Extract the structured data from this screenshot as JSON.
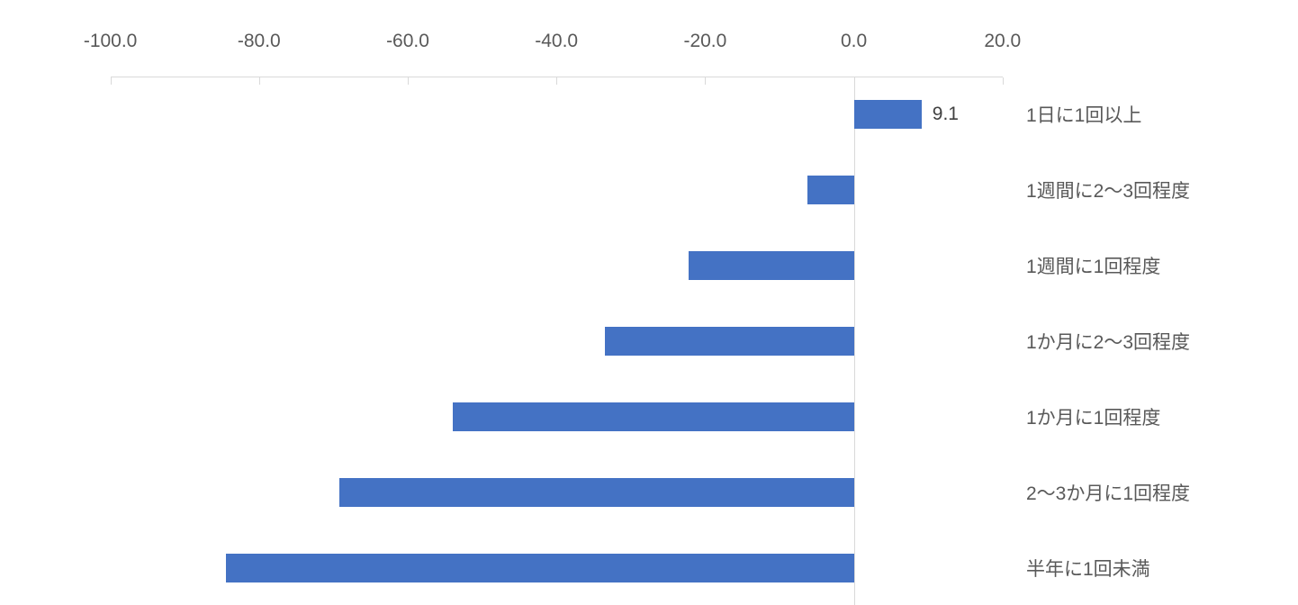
{
  "chart_data": {
    "type": "bar",
    "orientation": "horizontal",
    "title": "",
    "legend": "none",
    "gridlines": "none",
    "categories": [
      "1日に1回以上",
      "1週間に2〜3回程度",
      "1週間に1回程度",
      "1か月に2〜3回程度",
      "1か月に1回程度",
      "2〜3か月に1回程度",
      "半年に1回未満"
    ],
    "values": [
      9.1,
      -6.2,
      -22.2,
      -33.5,
      -53.9,
      -69.2,
      -84.5
    ],
    "data_labels": [
      "9.1",
      "-6.2",
      "-22.2",
      "-33.5",
      "-53.9",
      "-69.2",
      "-84.5"
    ],
    "axis": {
      "position": "top",
      "min": -100.0,
      "max": 20.0,
      "step": 20.0,
      "tick_labels": [
        "-100.0",
        "-80.0",
        "-60.0",
        "-40.0",
        "-20.0",
        "0.0",
        "20.0"
      ]
    },
    "colors": {
      "bar": "#4472C4",
      "axis_line": "#D9D9D9",
      "zero_line": "#D9D9D9",
      "tick_label": "#595959",
      "data_label": "#404040",
      "category_label": "#595959",
      "background": "#FFFFFF"
    }
  }
}
